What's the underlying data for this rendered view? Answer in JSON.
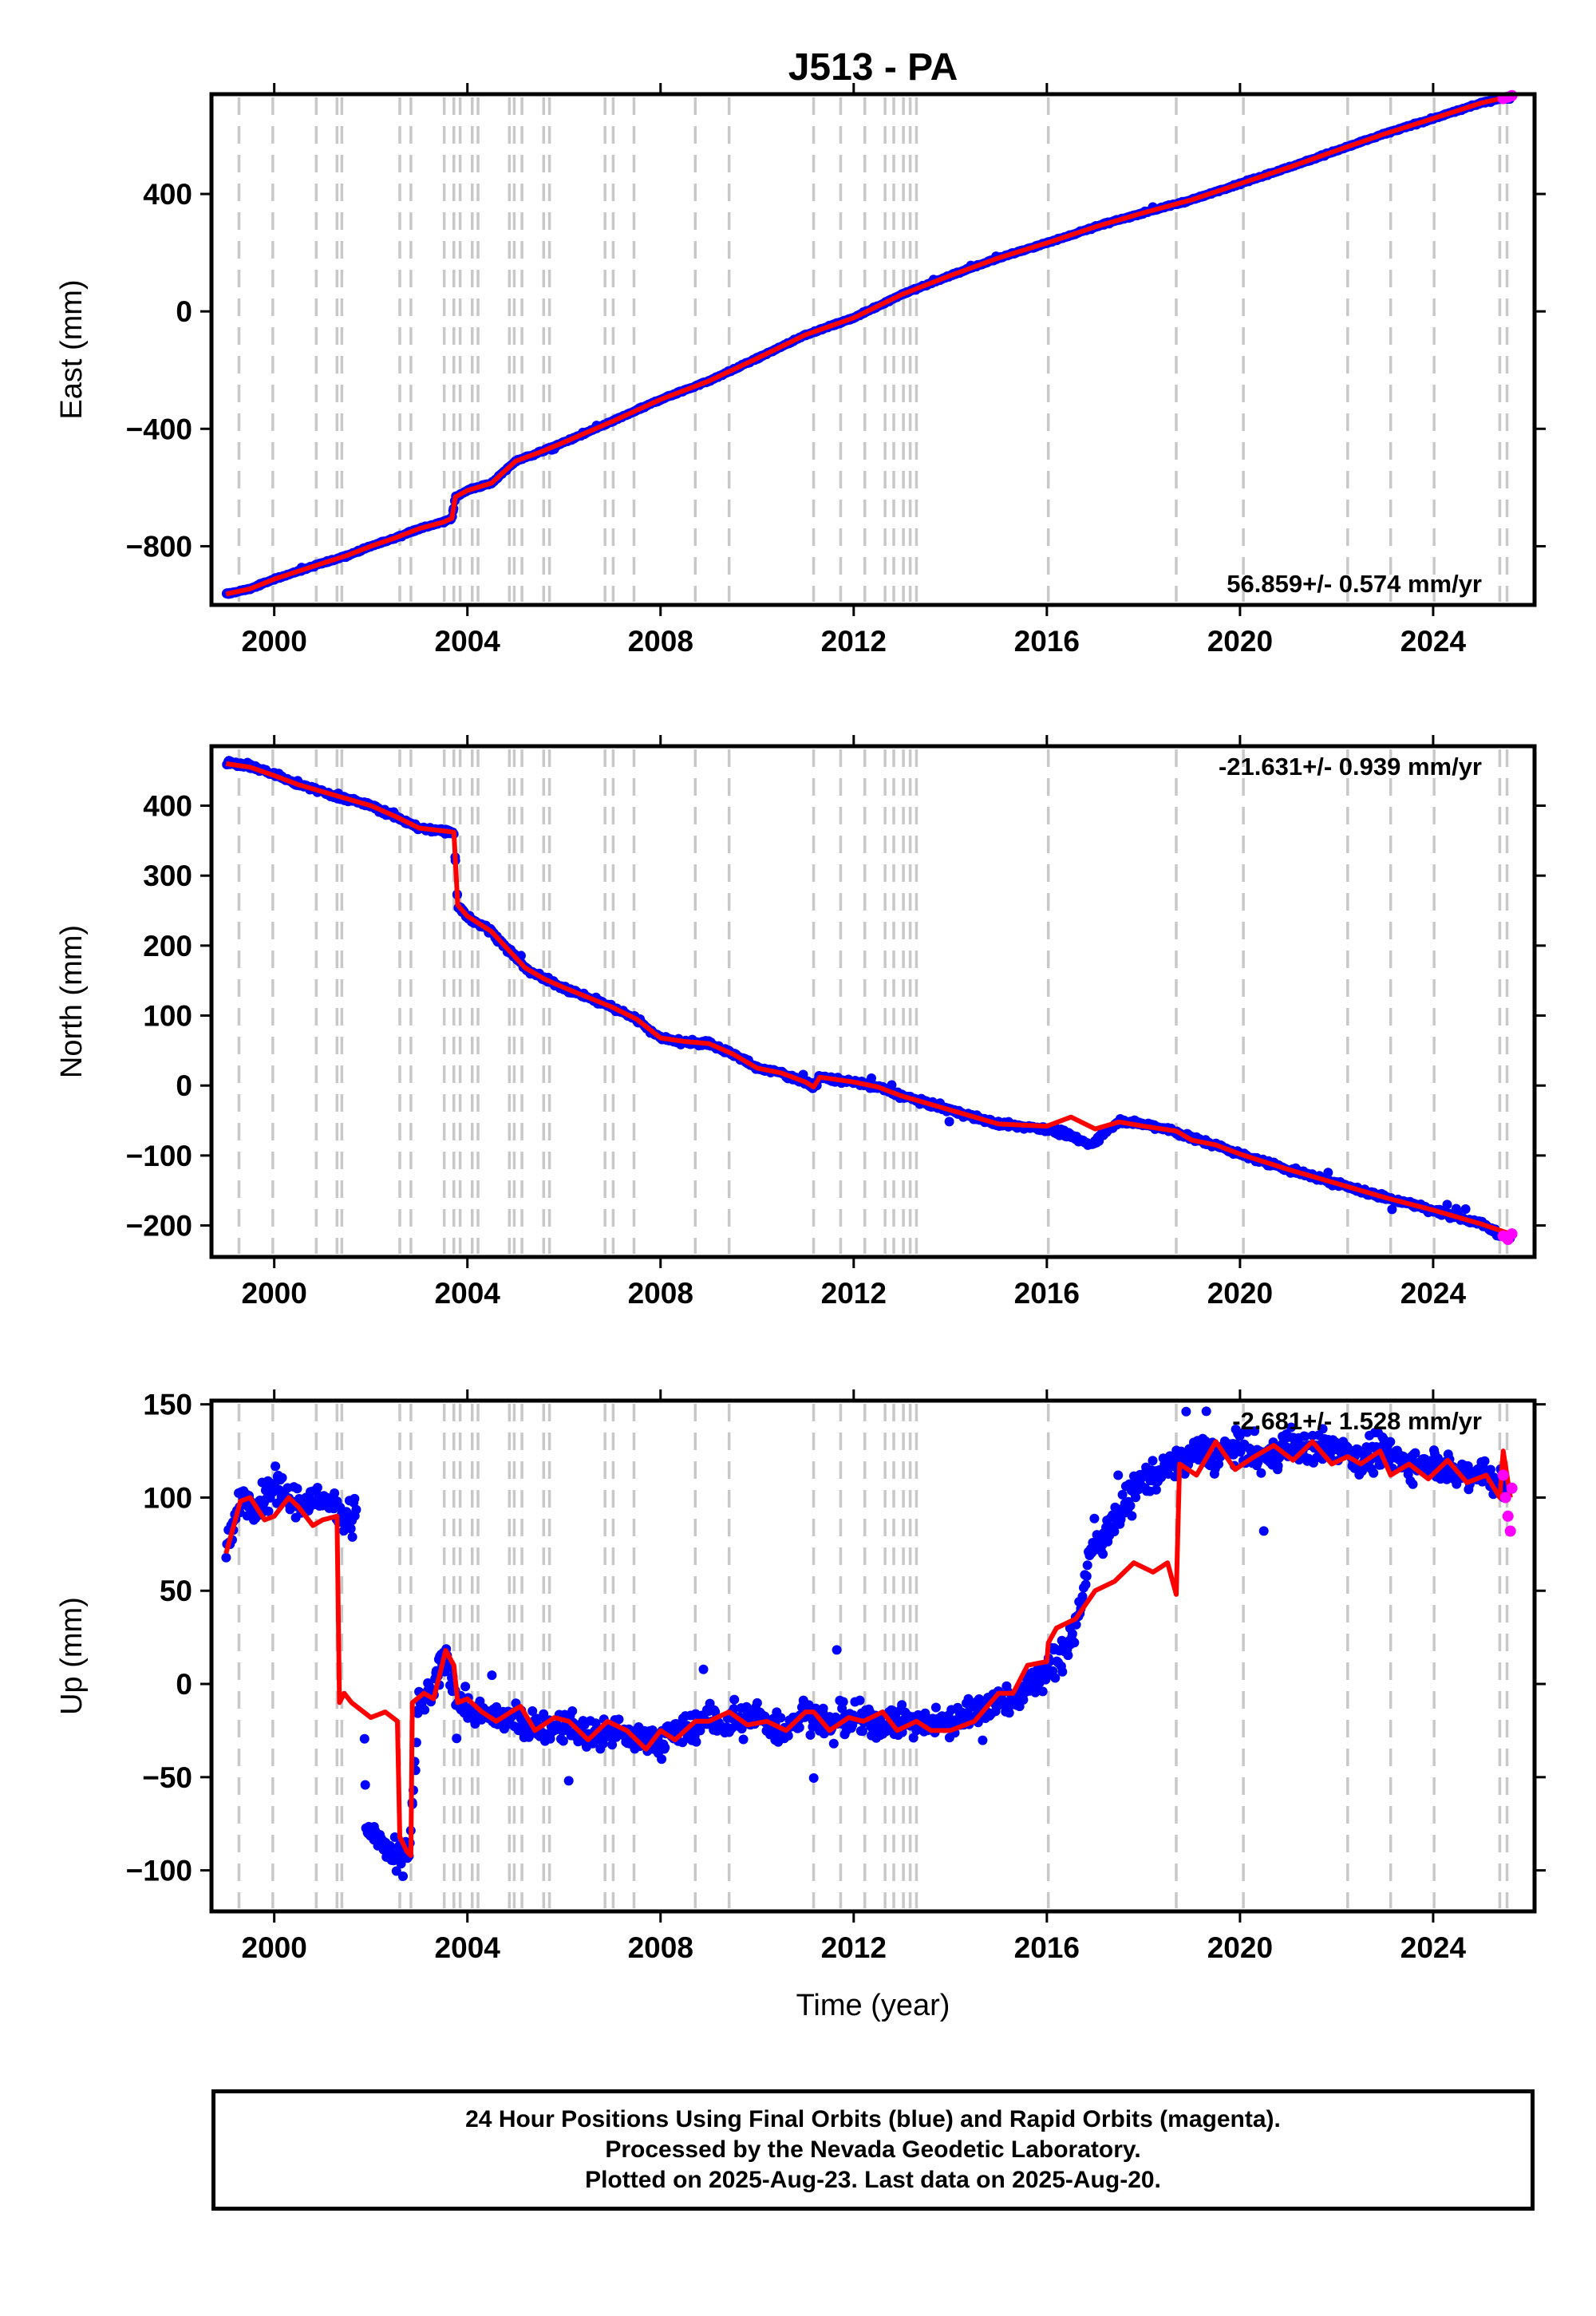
{
  "title": "J513 - PA",
  "colors": {
    "final": "#0000ff",
    "rapid": "#ff00ff",
    "model": "#ff0000",
    "steps": "#c8c8c8"
  },
  "caption": {
    "line1": "24 Hour Positions Using Final Orbits (blue) and Rapid Orbits (magenta).",
    "line2": "Processed by the Nevada Geodetic Laboratory.",
    "line3": "Plotted on 2025-Aug-23. Last data on 2025-Aug-20."
  },
  "chart_data": [
    {
      "type": "scatter",
      "ylabel": "East (mm)",
      "xlabel": "",
      "xlim": [
        1998.7,
        2026.1
      ],
      "ylim": [
        -1000,
        740
      ],
      "xticks": [
        2000,
        2004,
        2008,
        2012,
        2016,
        2020,
        2024
      ],
      "yticks": [
        400,
        0,
        -400,
        -800
      ],
      "rate": "56.859+/- 0.574 mm/yr",
      "rate_position": "bottom-right",
      "grid": false,
      "steps": [
        1999.27,
        1999.97,
        2000.87,
        2001.3,
        2001.4,
        2002.6,
        2002.83,
        2003.52,
        2003.72,
        2003.85,
        2004.1,
        2004.22,
        2004.87,
        2004.97,
        2005.13,
        2005.58,
        2005.7,
        2006.85,
        2007.02,
        2007.45,
        2008.72,
        2009.42,
        2011.17,
        2011.73,
        2012.23,
        2012.65,
        2012.83,
        2013.03,
        2013.17,
        2013.3,
        2016.03,
        2018.68,
        2020.07,
        2022.23,
        2023.12,
        2024.02,
        2025.38,
        2025.53
      ],
      "series": [
        {
          "kind": "final",
          "x": [
            1999.0,
            1999.5,
            2000.0,
            2000.5,
            2001.0,
            2001.5,
            2002.0,
            2002.5,
            2003.0,
            2003.5,
            2003.68,
            2003.75,
            2004.0,
            2004.5,
            2005.0,
            2005.5,
            2006.0,
            2007.0,
            2008.0,
            2009.0,
            2010.0,
            2011.0,
            2012.0,
            2013.0,
            2014.0,
            2015.0,
            2016.0,
            2017.0,
            2018.0,
            2019.0,
            2020.0,
            2021.0,
            2022.0,
            2023.0,
            2024.0,
            2025.0,
            2025.6
          ],
          "y": [
            -963,
            -945,
            -912,
            -885,
            -858,
            -832,
            -800,
            -772,
            -740,
            -718,
            -705,
            -632,
            -610,
            -585,
            -510,
            -480,
            -446,
            -375,
            -300,
            -237,
            -160,
            -80,
            -22,
            58,
            122,
            182,
            233,
            288,
            336,
            380,
            435,
            490,
            548,
            605,
            657,
            710,
            733
          ]
        },
        {
          "kind": "model",
          "x": [
            1999.0,
            1999.5,
            2000.0,
            2000.5,
            2001.0,
            2001.5,
            2002.0,
            2002.5,
            2003.0,
            2003.5,
            2003.68,
            2003.75,
            2004.0,
            2004.5,
            2005.0,
            2005.5,
            2006.0,
            2007.0,
            2008.0,
            2009.0,
            2010.0,
            2011.0,
            2012.0,
            2013.0,
            2014.0,
            2015.0,
            2016.0,
            2017.0,
            2018.0,
            2019.0,
            2020.0,
            2021.0,
            2022.0,
            2023.0,
            2024.0,
            2025.0,
            2025.6
          ],
          "y": [
            -963,
            -945,
            -912,
            -885,
            -858,
            -832,
            -800,
            -772,
            -740,
            -718,
            -705,
            -632,
            -610,
            -585,
            -510,
            -480,
            -446,
            -375,
            -300,
            -237,
            -160,
            -80,
            -22,
            58,
            122,
            182,
            233,
            288,
            336,
            380,
            435,
            490,
            548,
            605,
            657,
            710,
            733
          ]
        },
        {
          "kind": "rapid",
          "x": [
            2025.45,
            2025.55,
            2025.63
          ],
          "y": [
            725,
            730,
            735
          ]
        }
      ]
    },
    {
      "type": "scatter",
      "ylabel": "North (mm)",
      "xlabel": "",
      "xlim": [
        1998.7,
        2026.1
      ],
      "ylim": [
        -245,
        485
      ],
      "xticks": [
        2000,
        2004,
        2008,
        2012,
        2016,
        2020,
        2024
      ],
      "yticks": [
        400,
        300,
        200,
        100,
        0,
        -100,
        -200
      ],
      "rate": "-21.631+/- 0.939 mm/yr",
      "rate_position": "top-right",
      "grid": false,
      "steps": [
        1999.27,
        1999.97,
        2000.87,
        2001.3,
        2001.4,
        2002.6,
        2002.83,
        2003.52,
        2003.72,
        2003.85,
        2004.1,
        2004.22,
        2004.87,
        2004.97,
        2005.13,
        2005.58,
        2005.7,
        2006.85,
        2007.02,
        2007.45,
        2008.72,
        2009.42,
        2011.17,
        2011.73,
        2012.23,
        2012.65,
        2012.83,
        2013.03,
        2013.17,
        2013.3,
        2016.03,
        2018.68,
        2020.07,
        2022.23,
        2023.12,
        2024.02,
        2025.38,
        2025.53
      ],
      "series": [
        {
          "kind": "final",
          "x": [
            1999.0,
            1999.5,
            2000.0,
            2000.5,
            2001.0,
            2001.5,
            2002.0,
            2002.5,
            2003.0,
            2003.5,
            2003.72,
            2003.8,
            2004.0,
            2004.5,
            2004.9,
            2005.2,
            2005.6,
            2006.0,
            2007.0,
            2007.5,
            2008.0,
            2008.5,
            2009.0,
            2009.5,
            2010.0,
            2010.5,
            2011.0,
            2011.17,
            2011.3,
            2012.0,
            2012.5,
            2013.0,
            2013.5,
            2014.0,
            2015.0,
            2016.0,
            2016.5,
            2016.9,
            2017.5,
            2018.0,
            2018.5,
            2019.0,
            2019.5,
            2020.0,
            2021.0,
            2022.0,
            2023.0,
            2024.0,
            2025.0,
            2025.6
          ],
          "y": [
            463,
            457,
            445,
            430,
            420,
            410,
            400,
            385,
            368,
            364,
            362,
            258,
            242,
            220,
            190,
            168,
            152,
            140,
            112,
            95,
            68,
            62,
            60,
            45,
            25,
            18,
            5,
            -3,
            12,
            5,
            -2,
            -15,
            -25,
            -35,
            -55,
            -62,
            -72,
            -85,
            -50,
            -55,
            -62,
            -75,
            -85,
            -98,
            -120,
            -140,
            -160,
            -178,
            -198,
            -220
          ]
        },
        {
          "kind": "model",
          "x": [
            1999.0,
            1999.5,
            2000.0,
            2000.5,
            2001.0,
            2001.5,
            2002.0,
            2002.5,
            2003.0,
            2003.5,
            2003.72,
            2003.8,
            2004.0,
            2004.5,
            2004.9,
            2005.2,
            2005.6,
            2006.0,
            2007.0,
            2007.5,
            2008.0,
            2008.5,
            2009.0,
            2009.5,
            2010.0,
            2010.5,
            2011.0,
            2011.17,
            2011.3,
            2012.0,
            2012.5,
            2013.0,
            2013.5,
            2014.0,
            2015.0,
            2016.0,
            2016.5,
            2017.0,
            2017.5,
            2018.0,
            2018.68,
            2019.0,
            2019.5,
            2020.0,
            2021.0,
            2022.0,
            2023.0,
            2024.0,
            2025.0,
            2025.6
          ],
          "y": [
            460,
            455,
            443,
            430,
            420,
            410,
            400,
            385,
            368,
            364,
            362,
            258,
            242,
            220,
            190,
            168,
            152,
            140,
            112,
            95,
            68,
            63,
            60,
            45,
            25,
            18,
            5,
            -2,
            12,
            5,
            -2,
            -15,
            -25,
            -35,
            -55,
            -58,
            -45,
            -62,
            -52,
            -58,
            -65,
            -78,
            -85,
            -98,
            -120,
            -140,
            -160,
            -178,
            -198,
            -212
          ]
        },
        {
          "kind": "rapid",
          "x": [
            2025.45,
            2025.55,
            2025.63
          ],
          "y": [
            -215,
            -220,
            -212
          ]
        }
      ]
    },
    {
      "type": "scatter",
      "ylabel": "Up (mm)",
      "xlabel": "Time (year)",
      "xlim": [
        1998.7,
        2026.1
      ],
      "ylim": [
        -122,
        152
      ],
      "xticks": [
        2000,
        2004,
        2008,
        2012,
        2016,
        2020,
        2024
      ],
      "yticks": [
        150,
        100,
        50,
        0,
        -50,
        -100
      ],
      "rate": "-2.681+/- 1.528 mm/yr",
      "rate_position": "top-right",
      "grid": false,
      "steps": [
        1999.27,
        1999.97,
        2000.87,
        2001.3,
        2001.4,
        2002.6,
        2002.83,
        2003.52,
        2003.72,
        2003.85,
        2004.1,
        2004.22,
        2004.87,
        2004.97,
        2005.13,
        2005.58,
        2005.7,
        2006.85,
        2007.02,
        2007.45,
        2008.72,
        2009.42,
        2011.17,
        2011.73,
        2012.23,
        2012.65,
        2012.83,
        2013.03,
        2013.17,
        2013.3,
        2016.03,
        2018.68,
        2020.07,
        2022.23,
        2023.12,
        2024.02,
        2025.38,
        2025.53
      ],
      "series": [
        {
          "kind": "final",
          "x": [
            1999.0,
            1999.3,
            1999.6,
            2000.0,
            2000.3,
            2000.6,
            2001.0,
            2001.3,
            2001.5,
            2001.8,
            2001.9,
            2002.2,
            2002.5,
            2002.8,
            2003.0,
            2003.3,
            2003.55,
            2003.8,
            2004.2,
            2004.6,
            2005.0,
            2005.5,
            2006.0,
            2006.5,
            2007.0,
            2007.5,
            2008.0,
            2008.5,
            2009.0,
            2009.5,
            2010.0,
            2010.5,
            2011.0,
            2011.5,
            2012.0,
            2012.5,
            2013.0,
            2013.5,
            2014.0,
            2014.5,
            2015.0,
            2015.5,
            2015.9,
            2016.3,
            2016.6,
            2016.9,
            2017.3,
            2017.6,
            2018.0,
            2018.4,
            2018.7,
            2019.0,
            2019.5,
            2020.0,
            2020.5,
            2021.0,
            2021.5,
            2022.0,
            2022.5,
            2023.0,
            2023.5,
            2024.0,
            2024.5,
            2025.0,
            2025.5
          ],
          "y": [
            70,
            100,
            95,
            105,
            100,
            95,
            100,
            95,
            90,
            92,
            -80,
            -85,
            -95,
            -90,
            -10,
            -5,
            18,
            -10,
            -15,
            -18,
            -20,
            -25,
            -22,
            -28,
            -25,
            -30,
            -30,
            -25,
            -20,
            -22,
            -18,
            -25,
            -15,
            -22,
            -18,
            -22,
            -20,
            -22,
            -20,
            -15,
            -10,
            -5,
            5,
            15,
            30,
            70,
            85,
            95,
            110,
            115,
            118,
            125,
            122,
            128,
            120,
            130,
            125,
            128,
            120,
            125,
            118,
            120,
            112,
            115,
            105
          ]
        },
        {
          "kind": "model",
          "x": [
            1999.0,
            1999.3,
            1999.5,
            1999.8,
            2000.0,
            2000.3,
            2000.5,
            2000.8,
            2001.0,
            2001.3,
            2001.35,
            2001.45,
            2001.6,
            2002.0,
            2002.3,
            2002.55,
            2002.6,
            2002.75,
            2002.83,
            2002.86,
            2003.1,
            2003.3,
            2003.55,
            2003.72,
            2003.8,
            2004.0,
            2004.3,
            2004.6,
            2004.9,
            2005.1,
            2005.4,
            2005.8,
            2006.1,
            2006.5,
            2006.9,
            2007.3,
            2007.7,
            2008.0,
            2008.3,
            2008.72,
            2009.0,
            2009.42,
            2009.8,
            2010.2,
            2010.6,
            2011.0,
            2011.17,
            2011.5,
            2011.9,
            2012.2,
            2012.6,
            2012.9,
            2013.3,
            2013.6,
            2014.0,
            2014.5,
            2015.0,
            2015.3,
            2015.6,
            2016.0,
            2016.03,
            2016.2,
            2016.6,
            2017.0,
            2017.4,
            2017.8,
            2018.2,
            2018.5,
            2018.68,
            2018.75,
            2019.1,
            2019.5,
            2019.9,
            2020.07,
            2020.3,
            2020.7,
            2021.1,
            2021.5,
            2021.9,
            2022.23,
            2022.5,
            2022.9,
            2023.12,
            2023.5,
            2023.9,
            2024.3,
            2024.7,
            2025.1,
            2025.38,
            2025.45,
            2025.6
          ],
          "y": [
            70,
            98,
            100,
            88,
            90,
            100,
            95,
            85,
            88,
            90,
            -10,
            -5,
            -10,
            -18,
            -15,
            -20,
            -82,
            -90,
            -92,
            -10,
            -5,
            -8,
            18,
            10,
            -10,
            -8,
            -15,
            -20,
            -15,
            -12,
            -25,
            -18,
            -20,
            -30,
            -20,
            -25,
            -35,
            -25,
            -30,
            -20,
            -20,
            -15,
            -22,
            -20,
            -25,
            -15,
            -15,
            -25,
            -18,
            -20,
            -15,
            -25,
            -20,
            -25,
            -25,
            -20,
            -5,
            -5,
            10,
            12,
            22,
            30,
            35,
            50,
            55,
            65,
            60,
            65,
            48,
            118,
            112,
            130,
            115,
            118,
            122,
            128,
            120,
            130,
            118,
            122,
            118,
            125,
            112,
            118,
            110,
            120,
            108,
            112,
            100,
            125,
            100
          ]
        },
        {
          "kind": "rapid",
          "x": [
            2025.45,
            2025.5,
            2025.55,
            2025.6,
            2025.63
          ],
          "y": [
            112,
            100,
            90,
            82,
            105
          ]
        }
      ]
    }
  ]
}
